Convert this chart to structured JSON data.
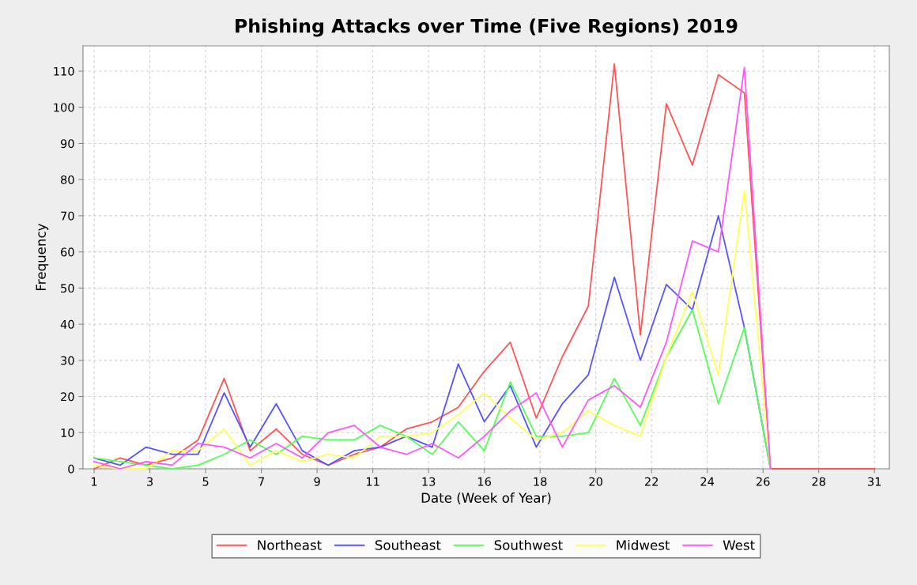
{
  "chart_data": {
    "type": "line",
    "title": "Phishing Attacks over Time (Five Regions) 2019",
    "xlabel": "Date (Week of Year)",
    "ylabel": "Frequency",
    "x": [
      "2018-12-31",
      "2019-01-07",
      "2019-01-14",
      "2019-01-21",
      "2019-01-28",
      "2019-02-04",
      "2019-02-11",
      "2019-02-18",
      "2019-02-25",
      "2019-03-04",
      "2019-03-11",
      "2019-03-18",
      "2019-03-25",
      "2019-04-01",
      "2019-04-08",
      "2019-04-15",
      "2019-04-22",
      "2019-04-29",
      "2019-05-06",
      "2019-05-13",
      "2019-05-20",
      "2019-05-27",
      "2019-06-03",
      "2019-06-10",
      "2019-06-17",
      "2019-06-24",
      "2019-07-01",
      "2019-07-08",
      "2019-07-15",
      "2019-07-22",
      "2019-07-29"
    ],
    "series": [
      {
        "name": "Northeast",
        "color": "#ff5555",
        "values": [
          0,
          3,
          1,
          3,
          8,
          25,
          5,
          11,
          4,
          1,
          4,
          6,
          11,
          13,
          17,
          27,
          35,
          14,
          31,
          45,
          112,
          37,
          101,
          84,
          109,
          104,
          0,
          0,
          0,
          0,
          0
        ]
      },
      {
        "name": "Southeast",
        "color": "#5555ff",
        "values": [
          3,
          1,
          6,
          4,
          4,
          21,
          6,
          18,
          5,
          1,
          5,
          6,
          9,
          6,
          29,
          13,
          23,
          6,
          18,
          26,
          53,
          30,
          51,
          44,
          70,
          39,
          0,
          null,
          null,
          null,
          null
        ]
      },
      {
        "name": "Southwest",
        "color": "#55ff55",
        "values": [
          3,
          2,
          1,
          0,
          1,
          4,
          8,
          4,
          9,
          8,
          8,
          12,
          9,
          4,
          13,
          5,
          24,
          9,
          9,
          10,
          25,
          12,
          31,
          44,
          18,
          39,
          0,
          null,
          null,
          null,
          null
        ]
      },
      {
        "name": "Midwest",
        "color": "#ffff55",
        "values": [
          1,
          0,
          0,
          5,
          5,
          11,
          1,
          5,
          2,
          4,
          3,
          9,
          9,
          10,
          15,
          21,
          14,
          8,
          10,
          16,
          12,
          9,
          31,
          49,
          26,
          77,
          0,
          null,
          null,
          null,
          null
        ]
      },
      {
        "name": "West",
        "color": "#ff55ff",
        "values": [
          2,
          0,
          2,
          1,
          7,
          6,
          3,
          7,
          3,
          10,
          12,
          6,
          4,
          7,
          3,
          9,
          16,
          21,
          6,
          19,
          23,
          17,
          35,
          63,
          60,
          111,
          0,
          null,
          null,
          null,
          null
        ]
      }
    ],
    "xlim": [
      "2018-12-28",
      "2019-08-02"
    ],
    "xticks": [
      {
        "value": "2018-12-31",
        "label": "1"
      },
      {
        "value": "2019-01-15",
        "label": "3"
      },
      {
        "value": "2019-01-30",
        "label": "5"
      },
      {
        "value": "2019-02-14",
        "label": "7"
      },
      {
        "value": "2019-03-01",
        "label": "9"
      },
      {
        "value": "2019-03-16",
        "label": "11"
      },
      {
        "value": "2019-03-31",
        "label": "13"
      },
      {
        "value": "2019-04-15",
        "label": "16"
      },
      {
        "value": "2019-04-30",
        "label": "18"
      },
      {
        "value": "2019-05-15",
        "label": "20"
      },
      {
        "value": "2019-05-30",
        "label": "22"
      },
      {
        "value": "2019-06-14",
        "label": "24"
      },
      {
        "value": "2019-06-29",
        "label": "26"
      },
      {
        "value": "2019-07-14",
        "label": "28"
      },
      {
        "value": "2019-07-29",
        "label": "31"
      }
    ],
    "ylim": [
      0,
      117
    ],
    "yticks": [
      0,
      10,
      20,
      30,
      40,
      50,
      60,
      70,
      80,
      90,
      100,
      110
    ],
    "grid": true,
    "legend": "bottom",
    "line_style": "solid",
    "marker": "none"
  }
}
